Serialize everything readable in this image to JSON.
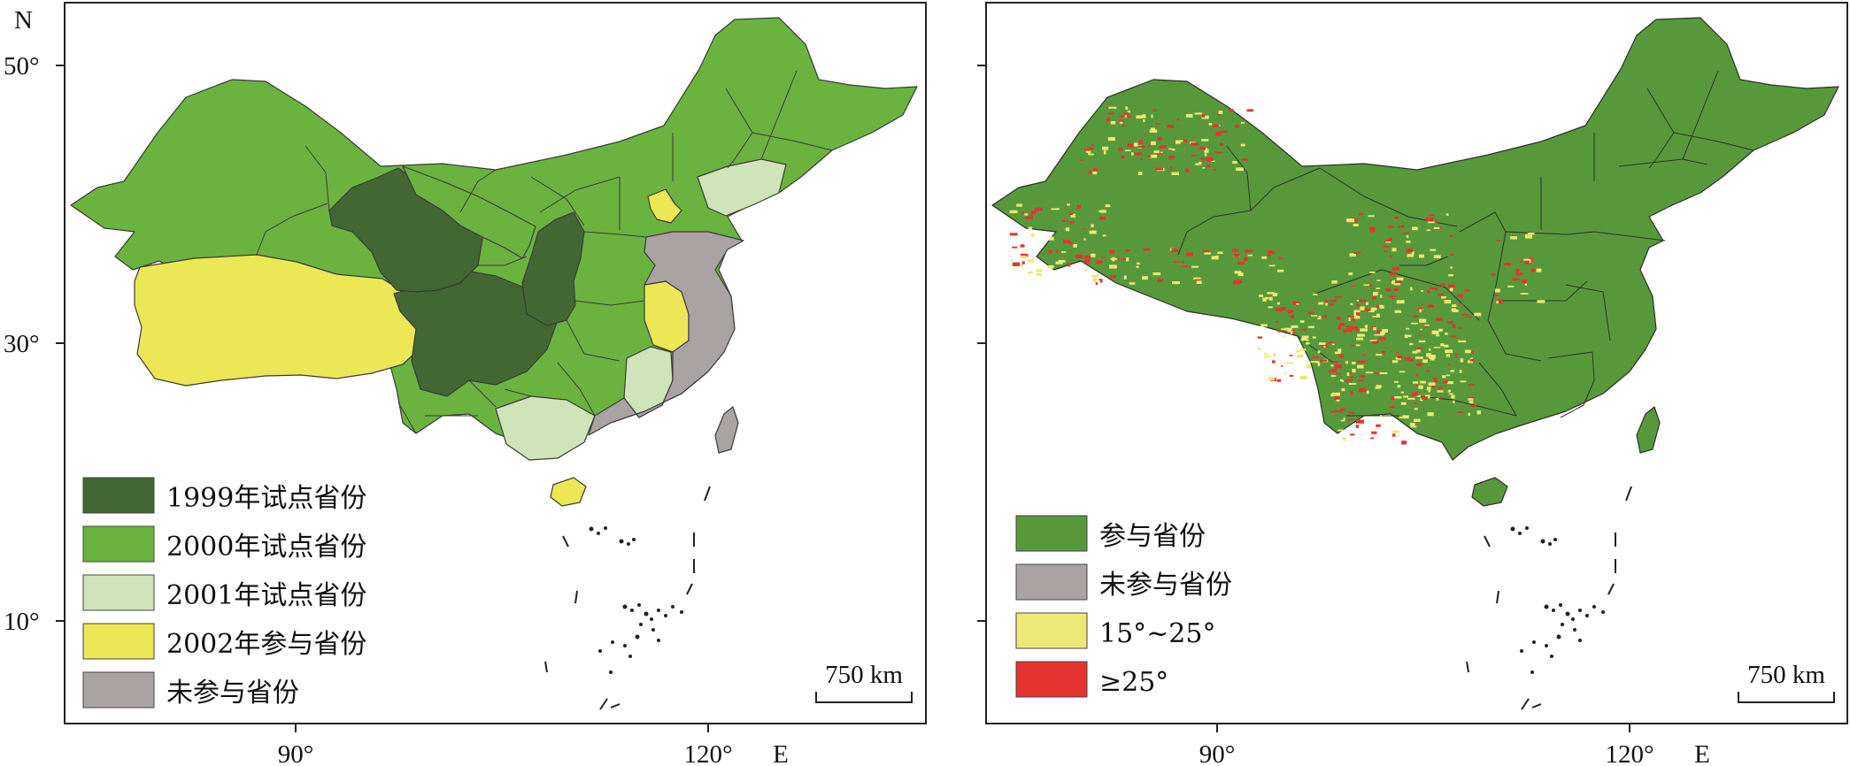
{
  "left_panel": {
    "north_label": "N",
    "east_label": "E",
    "lat_ticks": [
      "50°",
      "30°",
      "10°"
    ],
    "lon_ticks": [
      "90°",
      "120°"
    ],
    "scale_label": "750 km",
    "legend": [
      {
        "label": "1999年试点省份",
        "color": "#436732"
      },
      {
        "label": "2000年试点省份",
        "color": "#6bb33f"
      },
      {
        "label": "2001年试点省份",
        "color": "#cfe4b8"
      },
      {
        "label": "2002年参与省份",
        "color": "#ece855"
      },
      {
        "label": "未参与省份",
        "color": "#aaa3a3"
      }
    ]
  },
  "right_panel": {
    "east_label": "E",
    "lon_ticks": [
      "90°",
      "120°"
    ],
    "scale_label": "750 km",
    "legend": [
      {
        "label": "参与省份",
        "color": "#57993a"
      },
      {
        "label": "未参与省份",
        "color": "#aaa3a3"
      },
      {
        "label": "15°~25°",
        "color": "#ece877"
      },
      {
        "label": "≥25°",
        "color": "#e5342f"
      }
    ]
  }
}
